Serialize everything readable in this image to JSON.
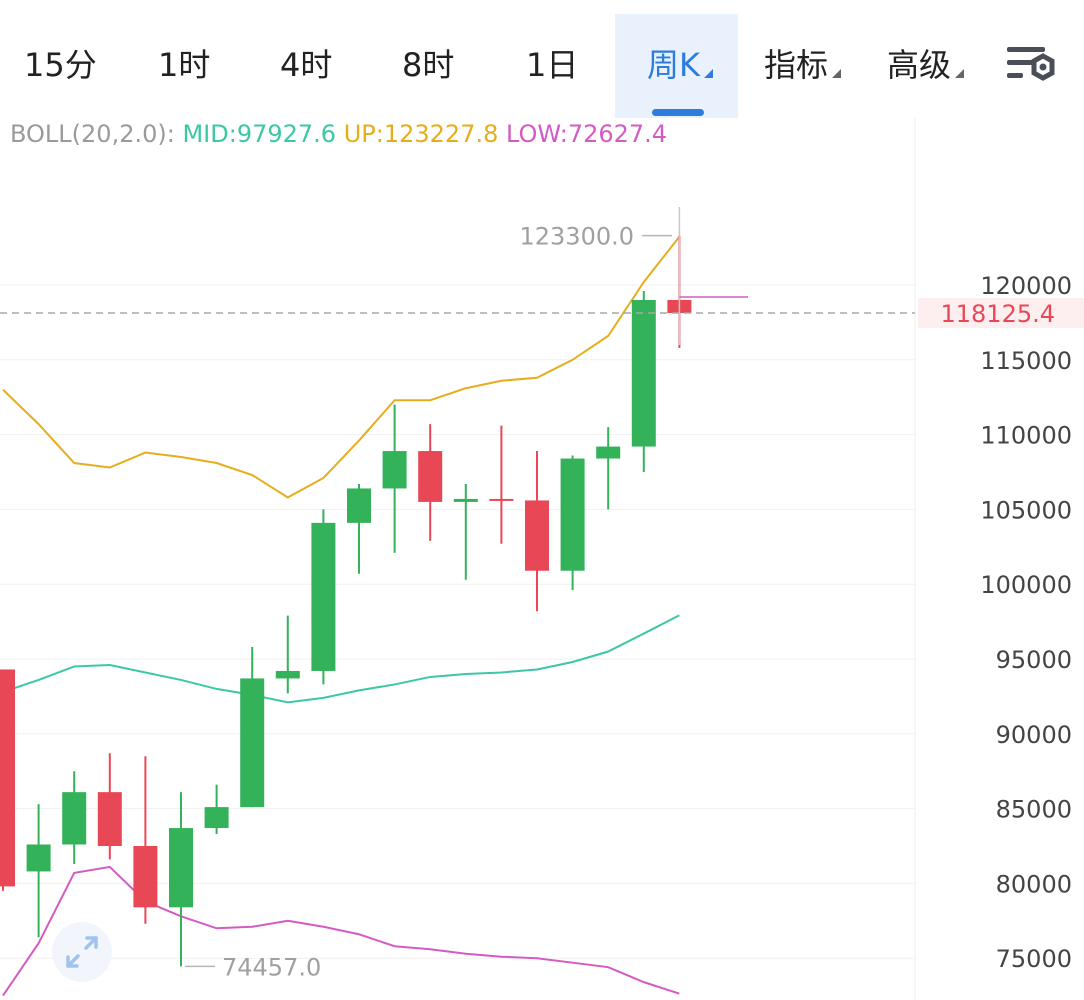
{
  "tabs": [
    {
      "label": "15分",
      "dropdown": false,
      "active": false
    },
    {
      "label": "1时",
      "dropdown": false,
      "active": false
    },
    {
      "label": "4时",
      "dropdown": false,
      "active": false
    },
    {
      "label": "8时",
      "dropdown": false,
      "active": false
    },
    {
      "label": "1日",
      "dropdown": false,
      "active": false
    },
    {
      "label": "周K",
      "dropdown": true,
      "active": true
    },
    {
      "label": "指标",
      "dropdown": true,
      "active": false
    },
    {
      "label": "高级",
      "dropdown": true,
      "active": false
    }
  ],
  "settings_icon": "chart-settings-icon",
  "expand_icon": "expand-arrows-icon",
  "boll": {
    "label": "BOLL(20,2.0):",
    "mid": "MID:97927.6",
    "up": "UP:123227.8",
    "low": "LOW:72627.4"
  },
  "colors": {
    "up_candle": "#34b25a",
    "down_candle": "#e84856",
    "mid_line": "#3cc7a5",
    "upper_line": "#e6ad1c",
    "lower_line": "#d45bc3",
    "active_tab": "#2e7ddc",
    "price_label": "#e84856"
  },
  "chart_data": {
    "type": "candlestick",
    "y_ticks": [
      "120000",
      "115000",
      "110000",
      "105000",
      "100000",
      "95000",
      "90000",
      "85000",
      "80000",
      "75000"
    ],
    "y_tick_values": [
      120000,
      115000,
      110000,
      105000,
      100000,
      95000,
      90000,
      85000,
      80000,
      75000
    ],
    "current_price": 118125.4,
    "current_price_label": "118125.4",
    "high_label": "123300.0",
    "low_label": "74457.0",
    "candles": [
      {
        "open": 94300,
        "close": 79800,
        "high": 94300,
        "low": 79500
      },
      {
        "open": 80800,
        "close": 82600,
        "high": 85300,
        "low": 76400
      },
      {
        "open": 82600,
        "close": 86100,
        "high": 87500,
        "low": 81300
      },
      {
        "open": 86100,
        "close": 82500,
        "high": 88700,
        "low": 81600
      },
      {
        "open": 82500,
        "close": 78400,
        "high": 88500,
        "low": 77300
      },
      {
        "open": 78400,
        "close": 83700,
        "high": 86100,
        "low": 74457
      },
      {
        "open": 83700,
        "close": 85100,
        "high": 86600,
        "low": 83300
      },
      {
        "open": 85100,
        "close": 93700,
        "high": 95800,
        "low": 85100
      },
      {
        "open": 93700,
        "close": 94200,
        "high": 97900,
        "low": 92700
      },
      {
        "open": 94200,
        "close": 104100,
        "high": 105000,
        "low": 93300
      },
      {
        "open": 104100,
        "close": 106400,
        "high": 106700,
        "low": 100700
      },
      {
        "open": 106400,
        "close": 108900,
        "high": 112000,
        "low": 102100
      },
      {
        "open": 108900,
        "close": 105500,
        "high": 110700,
        "low": 102900
      },
      {
        "open": 105500,
        "close": 105700,
        "high": 106700,
        "low": 100300
      },
      {
        "open": 105700,
        "close": 105600,
        "high": 110600,
        "low": 102700
      },
      {
        "open": 105600,
        "close": 100900,
        "high": 108900,
        "low": 98200
      },
      {
        "open": 100900,
        "close": 108400,
        "high": 108600,
        "low": 99600
      },
      {
        "open": 108400,
        "close": 109200,
        "high": 110500,
        "low": 105000
      },
      {
        "open": 109200,
        "close": 119000,
        "high": 119600,
        "low": 107500
      },
      {
        "open": 119000,
        "close": 118125.4,
        "high": 123300,
        "low": 115800
      }
    ],
    "boll_upper": [
      113000,
      110700,
      108100,
      107800,
      108800,
      108500,
      108100,
      107300,
      105800,
      107100,
      109600,
      112300,
      112300,
      113100,
      113600,
      113800,
      115000,
      116600,
      120200,
      123227.8
    ],
    "boll_mid": [
      92800,
      93600,
      94500,
      94600,
      94100,
      93600,
      93000,
      92600,
      92100,
      92400,
      92900,
      93300,
      93800,
      94000,
      94100,
      94300,
      94800,
      95500,
      96700,
      97927.6
    ],
    "boll_lower": [
      72500,
      76000,
      80700,
      81100,
      78800,
      77800,
      77000,
      77100,
      77500,
      77100,
      76600,
      75800,
      75600,
      75300,
      75100,
      75000,
      74700,
      74400,
      73400,
      72627.4
    ]
  }
}
